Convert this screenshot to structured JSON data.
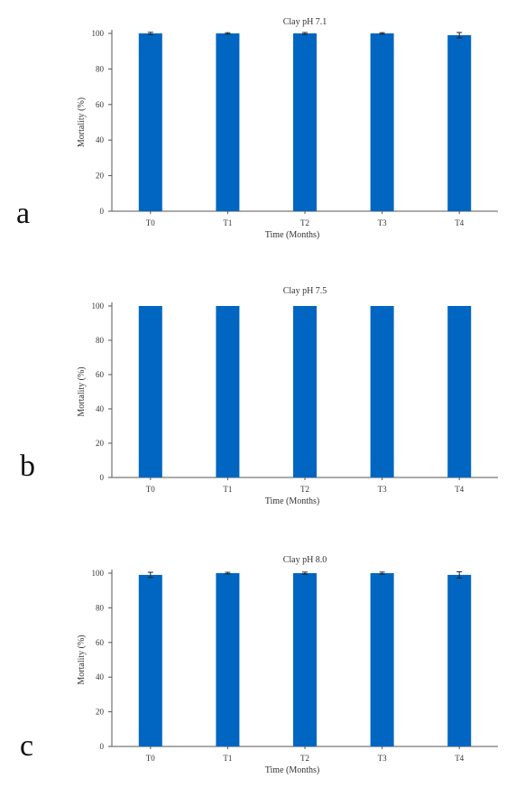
{
  "chart_data": [
    {
      "type": "bar",
      "panel": "a",
      "title": "Clay pH 7.1",
      "xlabel": "Time (Months)",
      "ylabel": "Mortality (%)",
      "categories": [
        "T0",
        "T1",
        "T2",
        "T3",
        "T4"
      ],
      "values": [
        100,
        100,
        100,
        100,
        99
      ],
      "errors": [
        0.6,
        0.4,
        0.5,
        0.4,
        1.5
      ],
      "ylim": [
        0,
        100
      ],
      "yticks": [
        0,
        20,
        40,
        60,
        80,
        100
      ],
      "color": "#0066c2",
      "legend": "none",
      "grid": false
    },
    {
      "type": "bar",
      "panel": "b",
      "title": "Clay pH 7.5",
      "xlabel": "Time (Months)",
      "ylabel": "Mortality (%)",
      "categories": [
        "T0",
        "T1",
        "T2",
        "T3",
        "T4"
      ],
      "values": [
        100,
        100,
        100,
        100,
        100
      ],
      "errors": [
        0,
        0,
        0,
        0,
        0
      ],
      "ylim": [
        0,
        100
      ],
      "yticks": [
        0,
        20,
        40,
        60,
        80,
        100
      ],
      "color": "#0066c2",
      "legend": "none",
      "grid": false
    },
    {
      "type": "bar",
      "panel": "c",
      "title": "Clay pH 8.0",
      "xlabel": "Time (Months)",
      "ylabel": "Mortality (%)",
      "categories": [
        "T0",
        "T1",
        "T2",
        "T3",
        "T4"
      ],
      "values": [
        99,
        100,
        100,
        100,
        99
      ],
      "errors": [
        1.5,
        0.5,
        0.6,
        0.6,
        1.8
      ],
      "ylim": [
        0,
        100
      ],
      "yticks": [
        0,
        20,
        40,
        60,
        80,
        100
      ],
      "color": "#0066c2",
      "legend": "none",
      "grid": false
    }
  ]
}
